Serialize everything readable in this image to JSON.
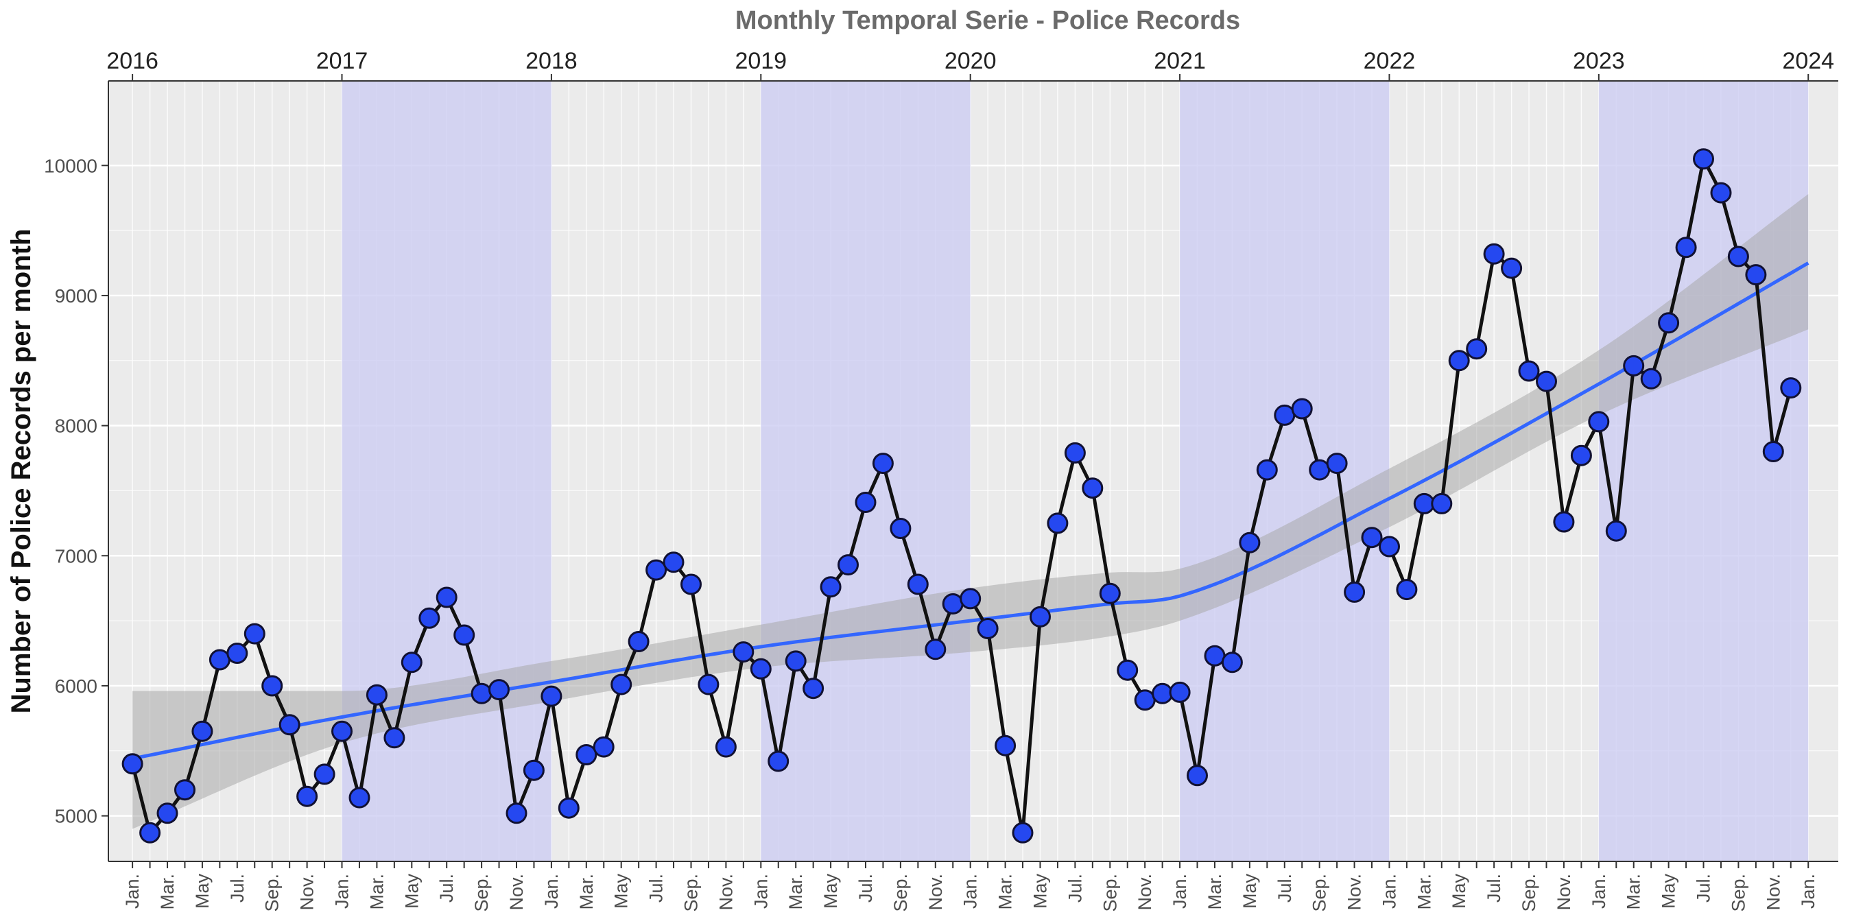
{
  "chart_data": {
    "type": "line",
    "title": "Monthly Temporal Serie - Police Records",
    "xlabel": "",
    "ylabel": "Number of Police Records per month",
    "ylim": [
      4650,
      10650
    ],
    "yticks": [
      5000,
      6000,
      7000,
      8000,
      9000,
      10000
    ],
    "year_labels": [
      "2016",
      "2017",
      "2018",
      "2019",
      "2020",
      "2021",
      "2022",
      "2023",
      "2024"
    ],
    "shaded_years": [
      2017,
      2019,
      2021,
      2023
    ],
    "month_labels": [
      "Jan.",
      "Mar.",
      "May",
      "Jul.",
      "Sep.",
      "Nov."
    ],
    "start": "2016-01",
    "end": "2024-01",
    "colors": {
      "panel": "#ebebeb",
      "grid": "#ffffff",
      "shade": "#ccccf2",
      "line": "#111111",
      "point": "#2548f0",
      "trend": "#3366ff",
      "ribbon": "#a9a9a9"
    },
    "series": [
      {
        "values": [
          5400,
          4870,
          5020,
          5200,
          5650,
          6200,
          6250,
          6400,
          6000,
          5700,
          5150,
          5320,
          5650,
          5140,
          5930,
          5600,
          6180,
          6520,
          6680,
          6390,
          5940,
          5970,
          5020,
          5350,
          5920,
          5060,
          5470,
          5530,
          6010,
          6340,
          6890,
          6950,
          6780,
          6010,
          5530,
          6260,
          6130,
          5420,
          6190,
          5980,
          6760,
          6930,
          7410,
          7710,
          7210,
          6780,
          6280,
          6630,
          6670,
          6440,
          5540,
          4870,
          6530,
          7250,
          7790,
          7520,
          6710,
          6120,
          5890,
          5940,
          5950,
          5310,
          6230,
          6180,
          7100,
          7660,
          8080,
          8130,
          7660,
          7710,
          6720,
          7140,
          7070,
          6740,
          7400,
          7400,
          8500,
          8590,
          9320,
          9210,
          8420,
          8340,
          7260,
          7770,
          8030,
          7190,
          8460,
          8360,
          8790,
          9370,
          10050,
          9790,
          9300,
          9160,
          7800,
          8290
        ]
      },
      {
        "type": "smooth",
        "x": [
          "2016-01",
          "2017-01",
          "2018-01",
          "2019-01",
          "2020-01",
          "2020-09",
          "2021-01",
          "2022-01",
          "2023-01",
          "2024-01"
        ],
        "values": [
          5440,
          5760,
          6030,
          6300,
          6500,
          6630,
          6690,
          7440,
          8320,
          9250
        ],
        "lower": [
          4900,
          5560,
          5880,
          6140,
          6260,
          6380,
          6500,
          7220,
          8080,
          8740
        ],
        "upper": [
          5960,
          5960,
          6190,
          6470,
          6750,
          6870,
          6900,
          7670,
          8580,
          9780
        ]
      }
    ]
  }
}
